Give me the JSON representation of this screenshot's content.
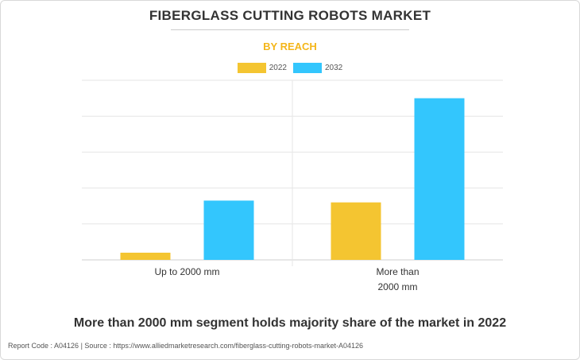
{
  "header": {
    "title": "FIBERGLASS CUTTING ROBOTS MARKET",
    "subtitle": "BY REACH",
    "subtitle_color": "#F4B61A"
  },
  "legend": [
    {
      "label": "2022",
      "color": "#F4C531"
    },
    {
      "label": "2032",
      "color": "#33C6FD"
    }
  ],
  "chart_data": {
    "type": "bar",
    "categories": [
      [
        "Up to 2000 mm"
      ],
      [
        "More than",
        "2000 mm"
      ]
    ],
    "series": [
      {
        "name": "2022",
        "color": "#F4C531",
        "values": [
          0.2,
          1.6
        ]
      },
      {
        "name": "2032",
        "color": "#33C6FD",
        "values": [
          1.65,
          4.5
        ]
      }
    ],
    "ylim": [
      0,
      5
    ],
    "y_gridlines": 5,
    "grid": true,
    "y_tick_labels_shown": false,
    "legend_position": "top-center"
  },
  "caption": "More than 2000 mm segment holds majority share of the market in 2022",
  "footer": "Report Code : A04126  |  Source : https://www.alliedmarketresearch.com/fiberglass-cutting-robots-market-A04126"
}
